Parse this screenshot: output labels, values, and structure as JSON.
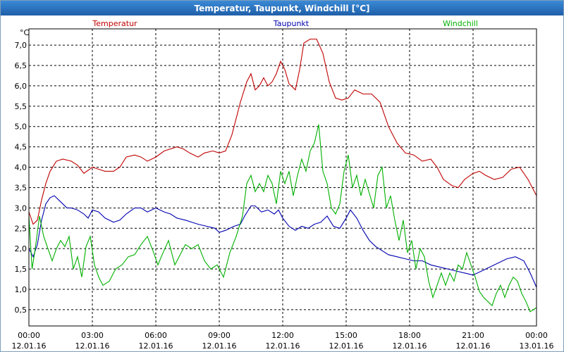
{
  "window": {
    "title": "Temperatur, Taupunkt, Windchill [°C]"
  },
  "chart_data": {
    "type": "line",
    "title": "Temperatur, Taupunkt, Windchill [°C]",
    "ylabel": "°C",
    "xlabel": "",
    "ylim": [
      0.1,
      7.4
    ],
    "yticks": [
      {
        "v": 0.5,
        "label": "0,5"
      },
      {
        "v": 1.0,
        "label": "1,0"
      },
      {
        "v": 1.5,
        "label": "1,5"
      },
      {
        "v": 2.0,
        "label": "2,0"
      },
      {
        "v": 2.5,
        "label": "2,5"
      },
      {
        "v": 3.0,
        "label": "3,0"
      },
      {
        "v": 3.5,
        "label": "3,5"
      },
      {
        "v": 4.0,
        "label": "4,0"
      },
      {
        "v": 4.5,
        "label": "4,5"
      },
      {
        "v": 5.0,
        "label": "5,0"
      },
      {
        "v": 5.5,
        "label": "5,5"
      },
      {
        "v": 6.0,
        "label": "6,0"
      },
      {
        "v": 6.5,
        "label": "6,5"
      },
      {
        "v": 7.0,
        "label": "7,0"
      }
    ],
    "xlim": [
      0,
      24
    ],
    "xticks": [
      {
        "h": 0,
        "time": "00:00",
        "date": "12.01.16"
      },
      {
        "h": 3,
        "time": "03:00",
        "date": "12.01.16"
      },
      {
        "h": 6,
        "time": "06:00",
        "date": "12.01.16"
      },
      {
        "h": 9,
        "time": "09:00",
        "date": "12.01.16"
      },
      {
        "h": 12,
        "time": "12:00",
        "date": "12.01.16"
      },
      {
        "h": 15,
        "time": "15:00",
        "date": "12.01.16"
      },
      {
        "h": 18,
        "time": "18:00",
        "date": "12.01.16"
      },
      {
        "h": 21,
        "time": "21:00",
        "date": "12.01.16"
      },
      {
        "h": 24,
        "time": "00:00",
        "date": "13.01.16"
      }
    ],
    "grid": true,
    "legend": "top",
    "series": [
      {
        "name": "Temperatur",
        "color": "#c00000",
        "points": [
          [
            0,
            2.9
          ],
          [
            0.2,
            2.6
          ],
          [
            0.4,
            2.7
          ],
          [
            0.6,
            3.2
          ],
          [
            0.8,
            3.6
          ],
          [
            1.0,
            3.9
          ],
          [
            1.3,
            4.15
          ],
          [
            1.6,
            4.2
          ],
          [
            2.0,
            4.15
          ],
          [
            2.3,
            4.05
          ],
          [
            2.6,
            3.85
          ],
          [
            3.0,
            4.0
          ],
          [
            3.3,
            3.95
          ],
          [
            3.6,
            3.9
          ],
          [
            4.0,
            3.9
          ],
          [
            4.3,
            4.0
          ],
          [
            4.6,
            4.25
          ],
          [
            5.0,
            4.3
          ],
          [
            5.3,
            4.25
          ],
          [
            5.6,
            4.15
          ],
          [
            6.0,
            4.25
          ],
          [
            6.4,
            4.4
          ],
          [
            7.0,
            4.5
          ],
          [
            7.3,
            4.45
          ],
          [
            7.6,
            4.35
          ],
          [
            8.0,
            4.25
          ],
          [
            8.3,
            4.35
          ],
          [
            8.7,
            4.4
          ],
          [
            9.0,
            4.35
          ],
          [
            9.3,
            4.4
          ],
          [
            9.6,
            4.8
          ],
          [
            10.0,
            5.6
          ],
          [
            10.3,
            6.1
          ],
          [
            10.5,
            6.3
          ],
          [
            10.7,
            5.9
          ],
          [
            10.9,
            6.0
          ],
          [
            11.1,
            6.2
          ],
          [
            11.3,
            6.0
          ],
          [
            11.5,
            6.1
          ],
          [
            11.7,
            6.3
          ],
          [
            11.9,
            6.6
          ],
          [
            12.1,
            6.4
          ],
          [
            12.3,
            6.05
          ],
          [
            12.6,
            5.9
          ],
          [
            12.8,
            6.4
          ],
          [
            13.0,
            7.05
          ],
          [
            13.3,
            7.15
          ],
          [
            13.6,
            7.15
          ],
          [
            13.9,
            6.8
          ],
          [
            14.2,
            6.1
          ],
          [
            14.5,
            5.7
          ],
          [
            14.8,
            5.65
          ],
          [
            15.1,
            5.7
          ],
          [
            15.4,
            5.9
          ],
          [
            15.8,
            5.8
          ],
          [
            16.2,
            5.8
          ],
          [
            16.6,
            5.6
          ],
          [
            17.0,
            5.0
          ],
          [
            17.4,
            4.6
          ],
          [
            17.8,
            4.35
          ],
          [
            18.2,
            4.3
          ],
          [
            18.6,
            4.15
          ],
          [
            19.0,
            4.2
          ],
          [
            19.3,
            4.0
          ],
          [
            19.6,
            3.7
          ],
          [
            20.0,
            3.55
          ],
          [
            20.3,
            3.5
          ],
          [
            20.6,
            3.7
          ],
          [
            21.0,
            3.85
          ],
          [
            21.3,
            3.9
          ],
          [
            21.6,
            3.8
          ],
          [
            22.0,
            3.7
          ],
          [
            22.4,
            3.75
          ],
          [
            22.8,
            3.95
          ],
          [
            23.2,
            4.0
          ],
          [
            23.6,
            3.7
          ],
          [
            24,
            3.3
          ]
        ]
      },
      {
        "name": "Taupunkt",
        "color": "#0000b0",
        "points": [
          [
            0,
            2.0
          ],
          [
            0.2,
            1.8
          ],
          [
            0.4,
            2.1
          ],
          [
            0.6,
            2.7
          ],
          [
            0.8,
            3.1
          ],
          [
            1.0,
            3.25
          ],
          [
            1.2,
            3.3
          ],
          [
            1.5,
            3.15
          ],
          [
            1.8,
            3.0
          ],
          [
            2.0,
            3.0
          ],
          [
            2.3,
            2.95
          ],
          [
            2.6,
            2.85
          ],
          [
            2.8,
            2.75
          ],
          [
            3.0,
            2.95
          ],
          [
            3.3,
            2.9
          ],
          [
            3.6,
            2.75
          ],
          [
            4.0,
            2.65
          ],
          [
            4.3,
            2.7
          ],
          [
            4.6,
            2.85
          ],
          [
            5.0,
            3.0
          ],
          [
            5.3,
            3.0
          ],
          [
            5.6,
            2.9
          ],
          [
            6.0,
            3.0
          ],
          [
            6.4,
            2.9
          ],
          [
            6.7,
            2.85
          ],
          [
            7.0,
            2.75
          ],
          [
            7.4,
            2.7
          ],
          [
            7.7,
            2.65
          ],
          [
            8.0,
            2.6
          ],
          [
            8.4,
            2.55
          ],
          [
            8.8,
            2.5
          ],
          [
            9.0,
            2.4
          ],
          [
            9.3,
            2.45
          ],
          [
            9.7,
            2.55
          ],
          [
            10.0,
            2.6
          ],
          [
            10.2,
            2.8
          ],
          [
            10.5,
            3.05
          ],
          [
            10.7,
            3.05
          ],
          [
            11.0,
            2.9
          ],
          [
            11.3,
            2.95
          ],
          [
            11.6,
            2.85
          ],
          [
            11.8,
            2.95
          ],
          [
            12.0,
            2.75
          ],
          [
            12.3,
            2.55
          ],
          [
            12.6,
            2.45
          ],
          [
            12.9,
            2.55
          ],
          [
            13.2,
            2.5
          ],
          [
            13.5,
            2.6
          ],
          [
            13.8,
            2.65
          ],
          [
            14.1,
            2.8
          ],
          [
            14.4,
            2.55
          ],
          [
            14.7,
            2.5
          ],
          [
            15.0,
            2.75
          ],
          [
            15.2,
            2.95
          ],
          [
            15.5,
            2.75
          ],
          [
            15.8,
            2.45
          ],
          [
            16.1,
            2.2
          ],
          [
            16.4,
            2.05
          ],
          [
            16.7,
            1.95
          ],
          [
            17.0,
            1.85
          ],
          [
            17.4,
            1.8
          ],
          [
            17.8,
            1.75
          ],
          [
            18.2,
            1.7
          ],
          [
            18.6,
            1.7
          ],
          [
            19.0,
            1.6
          ],
          [
            19.4,
            1.55
          ],
          [
            19.8,
            1.5
          ],
          [
            20.2,
            1.45
          ],
          [
            20.6,
            1.4
          ],
          [
            21.0,
            1.35
          ],
          [
            21.4,
            1.45
          ],
          [
            21.8,
            1.55
          ],
          [
            22.2,
            1.65
          ],
          [
            22.6,
            1.75
          ],
          [
            23.0,
            1.8
          ],
          [
            23.4,
            1.7
          ],
          [
            23.7,
            1.4
          ],
          [
            24,
            1.05
          ]
        ]
      },
      {
        "name": "Windchill",
        "color": "#00b000",
        "points": [
          [
            0,
            2.8
          ],
          [
            0.15,
            1.5
          ],
          [
            0.3,
            2.0
          ],
          [
            0.5,
            2.8
          ],
          [
            0.7,
            2.3
          ],
          [
            0.9,
            2.0
          ],
          [
            1.1,
            1.7
          ],
          [
            1.3,
            2.0
          ],
          [
            1.5,
            2.2
          ],
          [
            1.7,
            2.05
          ],
          [
            1.9,
            2.3
          ],
          [
            2.1,
            1.5
          ],
          [
            2.3,
            1.8
          ],
          [
            2.5,
            1.3
          ],
          [
            2.7,
            2.05
          ],
          [
            2.9,
            2.3
          ],
          [
            3.1,
            1.6
          ],
          [
            3.3,
            1.3
          ],
          [
            3.5,
            1.1
          ],
          [
            3.8,
            1.2
          ],
          [
            4.1,
            1.5
          ],
          [
            4.4,
            1.6
          ],
          [
            4.7,
            1.8
          ],
          [
            5.0,
            1.85
          ],
          [
            5.3,
            2.1
          ],
          [
            5.6,
            2.3
          ],
          [
            5.9,
            1.9
          ],
          [
            6.1,
            1.6
          ],
          [
            6.3,
            1.85
          ],
          [
            6.6,
            2.2
          ],
          [
            6.9,
            1.6
          ],
          [
            7.1,
            1.8
          ],
          [
            7.4,
            2.1
          ],
          [
            7.7,
            2.0
          ],
          [
            8.0,
            2.1
          ],
          [
            8.3,
            1.7
          ],
          [
            8.6,
            1.5
          ],
          [
            8.9,
            1.6
          ],
          [
            9.2,
            1.3
          ],
          [
            9.5,
            1.9
          ],
          [
            9.8,
            2.3
          ],
          [
            10.1,
            2.8
          ],
          [
            10.3,
            3.6
          ],
          [
            10.5,
            3.8
          ],
          [
            10.7,
            3.4
          ],
          [
            10.9,
            3.6
          ],
          [
            11.1,
            3.4
          ],
          [
            11.3,
            3.8
          ],
          [
            11.5,
            3.6
          ],
          [
            11.7,
            3.1
          ],
          [
            11.9,
            3.9
          ],
          [
            12.1,
            3.6
          ],
          [
            12.3,
            3.9
          ],
          [
            12.5,
            3.3
          ],
          [
            12.7,
            3.8
          ],
          [
            12.9,
            4.2
          ],
          [
            13.1,
            3.9
          ],
          [
            13.3,
            4.4
          ],
          [
            13.5,
            4.6
          ],
          [
            13.7,
            5.05
          ],
          [
            13.9,
            3.9
          ],
          [
            14.1,
            3.6
          ],
          [
            14.3,
            3.0
          ],
          [
            14.5,
            2.85
          ],
          [
            14.7,
            3.1
          ],
          [
            14.9,
            3.9
          ],
          [
            15.1,
            4.3
          ],
          [
            15.3,
            3.5
          ],
          [
            15.5,
            3.8
          ],
          [
            15.7,
            3.3
          ],
          [
            15.9,
            3.7
          ],
          [
            16.1,
            3.35
          ],
          [
            16.3,
            3.0
          ],
          [
            16.5,
            3.8
          ],
          [
            16.7,
            4.0
          ],
          [
            16.9,
            3.0
          ],
          [
            17.1,
            3.3
          ],
          [
            17.3,
            2.7
          ],
          [
            17.5,
            2.2
          ],
          [
            17.7,
            2.7
          ],
          [
            17.9,
            1.9
          ],
          [
            18.1,
            2.2
          ],
          [
            18.3,
            1.5
          ],
          [
            18.5,
            2.0
          ],
          [
            18.7,
            1.8
          ],
          [
            18.9,
            1.2
          ],
          [
            19.1,
            0.8
          ],
          [
            19.3,
            1.1
          ],
          [
            19.5,
            1.4
          ],
          [
            19.7,
            1.1
          ],
          [
            19.9,
            1.4
          ],
          [
            20.1,
            1.2
          ],
          [
            20.3,
            1.6
          ],
          [
            20.5,
            1.5
          ],
          [
            20.7,
            1.9
          ],
          [
            20.9,
            1.6
          ],
          [
            21.1,
            1.3
          ],
          [
            21.3,
            0.95
          ],
          [
            21.5,
            0.8
          ],
          [
            21.7,
            0.7
          ],
          [
            21.9,
            0.6
          ],
          [
            22.1,
            0.9
          ],
          [
            22.3,
            1.1
          ],
          [
            22.5,
            0.8
          ],
          [
            22.7,
            1.1
          ],
          [
            22.9,
            1.3
          ],
          [
            23.1,
            1.2
          ],
          [
            23.3,
            0.9
          ],
          [
            23.5,
            0.7
          ],
          [
            23.7,
            0.45
          ],
          [
            24,
            0.55
          ]
        ]
      }
    ]
  }
}
